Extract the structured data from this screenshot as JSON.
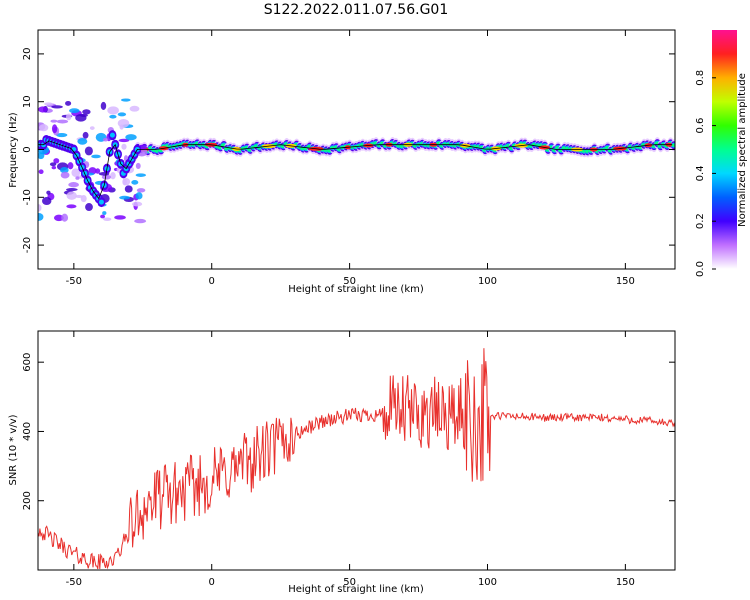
{
  "chart_data": [
    {
      "type": "heatmap",
      "title": "S122.2022.011.07.56.G01",
      "xlabel": "Height of straight line (km)",
      "ylabel": "Frequency (Hz)",
      "xlim": [
        -63,
        168
      ],
      "ylim": [
        -25,
        25
      ],
      "xticks": [
        -50,
        0,
        50,
        100,
        150
      ],
      "yticks": [
        -20,
        -10,
        0,
        10,
        20
      ],
      "colorbar": {
        "label": "Normalized spectral amplitude",
        "range": [
          0.0,
          1.0
        ],
        "ticks": [
          0.0,
          0.2,
          0.4,
          0.6,
          0.8
        ]
      },
      "ridge": [
        {
          "x": -60,
          "y": 2
        },
        {
          "x": -55,
          "y": 1
        },
        {
          "x": -50,
          "y": 0
        },
        {
          "x": -46,
          "y": -5
        },
        {
          "x": -44,
          "y": -8
        },
        {
          "x": -40,
          "y": -11
        },
        {
          "x": -36,
          "y": 3
        },
        {
          "x": -32,
          "y": -5
        },
        {
          "x": -27,
          "y": 0
        },
        {
          "x": -20,
          "y": 0
        },
        {
          "x": -10,
          "y": 1
        },
        {
          "x": 0,
          "y": 1
        },
        {
          "x": 10,
          "y": 0
        },
        {
          "x": 25,
          "y": 1
        },
        {
          "x": 40,
          "y": 0
        },
        {
          "x": 60,
          "y": 1
        },
        {
          "x": 75,
          "y": 1
        },
        {
          "x": 90,
          "y": 1
        },
        {
          "x": 100,
          "y": 0
        },
        {
          "x": 115,
          "y": 1
        },
        {
          "x": 125,
          "y": 0
        },
        {
          "x": 145,
          "y": 0
        },
        {
          "x": 160,
          "y": 1
        },
        {
          "x": 168,
          "y": 1
        }
      ]
    },
    {
      "type": "line",
      "title": "",
      "xlabel": "Height of straight line (km)",
      "ylabel": "SNR (10 * v/v)",
      "xlim": [
        -63,
        168
      ],
      "ylim": [
        0,
        690
      ],
      "xticks": [
        -50,
        0,
        50,
        100,
        150
      ],
      "yticks": [
        200,
        400,
        600
      ],
      "color": "#e8302c",
      "trend": [
        {
          "x": -63,
          "y": 120
        },
        {
          "x": -58,
          "y": 90
        },
        {
          "x": -50,
          "y": 45
        },
        {
          "x": -42,
          "y": 20
        },
        {
          "x": -35,
          "y": 30
        },
        {
          "x": -30,
          "y": 110
        },
        {
          "x": -25,
          "y": 180
        },
        {
          "x": -18,
          "y": 210
        },
        {
          "x": -10,
          "y": 230
        },
        {
          "x": 0,
          "y": 260
        },
        {
          "x": 10,
          "y": 300
        },
        {
          "x": 20,
          "y": 340
        },
        {
          "x": 30,
          "y": 390
        },
        {
          "x": 40,
          "y": 430
        },
        {
          "x": 50,
          "y": 445
        },
        {
          "x": 60,
          "y": 450
        },
        {
          "x": 70,
          "y": 455
        },
        {
          "x": 80,
          "y": 450
        },
        {
          "x": 90,
          "y": 445
        },
        {
          "x": 98,
          "y": 440
        },
        {
          "x": 105,
          "y": 445
        },
        {
          "x": 120,
          "y": 440
        },
        {
          "x": 140,
          "y": 440
        },
        {
          "x": 160,
          "y": 430
        },
        {
          "x": 168,
          "y": 420
        }
      ]
    }
  ]
}
